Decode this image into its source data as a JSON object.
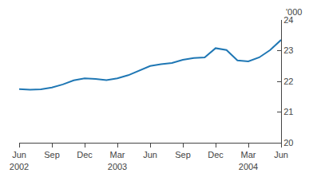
{
  "chart_data": {
    "type": "line",
    "ylabel": "'000",
    "categories": [
      "Jun\n2002",
      null,
      null,
      "Sep",
      null,
      null,
      "Dec",
      null,
      null,
      "Mar\n2003",
      null,
      null,
      "Jun",
      null,
      null,
      "Sep",
      null,
      null,
      "Dec",
      null,
      null,
      "Mar\n2004",
      null,
      null,
      "Jun"
    ],
    "values": [
      21.75,
      21.73,
      21.74,
      21.8,
      21.9,
      22.03,
      22.1,
      22.08,
      22.04,
      22.1,
      22.2,
      22.35,
      22.5,
      22.56,
      22.6,
      22.7,
      22.76,
      22.78,
      23.08,
      23.02,
      22.68,
      22.65,
      22.78,
      23.02,
      23.35
    ],
    "ylim": [
      20,
      24
    ],
    "yticks": [
      20,
      21,
      22,
      23,
      24
    ],
    "grid": false
  }
}
